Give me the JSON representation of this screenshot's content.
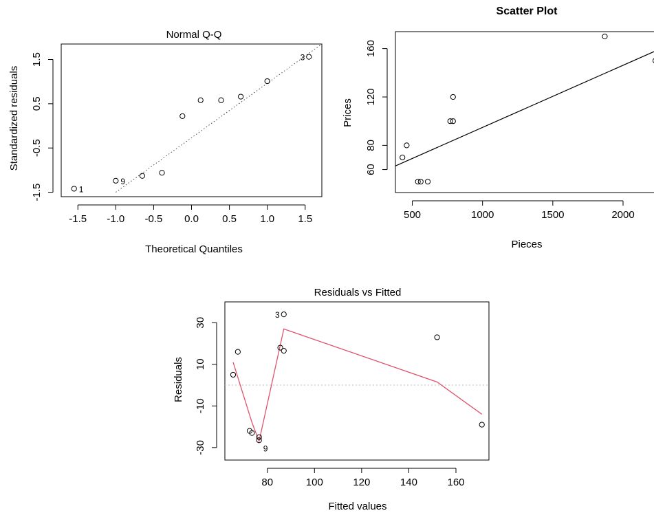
{
  "chart_data": [
    {
      "id": "qq",
      "type": "scatter",
      "title": "Normal Q-Q",
      "title_bold": false,
      "xlabel": "Theoretical Quantiles",
      "ylabel": "Standardized residuals",
      "xlim": [
        -1.72,
        1.72
      ],
      "ylim": [
        -1.6,
        1.85
      ],
      "xticks": [
        "-1.5",
        "-1.0",
        "-0.5",
        "0.0",
        "0.5",
        "1.0",
        "1.5"
      ],
      "xtick_values": [
        -1.5,
        -1.0,
        -0.5,
        0.0,
        0.5,
        1.0,
        1.5
      ],
      "yticks": [
        "-1.5",
        "-0.5",
        "0.5",
        "1.5"
      ],
      "ytick_values": [
        -1.5,
        -0.5,
        0.5,
        1.5
      ],
      "points": [
        {
          "x": -1.55,
          "y": -1.42,
          "label": "1"
        },
        {
          "x": -1.0,
          "y": -1.24,
          "label": "9"
        },
        {
          "x": -0.65,
          "y": -1.13,
          "label": ""
        },
        {
          "x": -0.39,
          "y": -1.06,
          "label": ""
        },
        {
          "x": -0.12,
          "y": 0.22,
          "label": ""
        },
        {
          "x": 0.12,
          "y": 0.58,
          "label": ""
        },
        {
          "x": 0.39,
          "y": 0.58,
          "label": ""
        },
        {
          "x": 0.65,
          "y": 0.66,
          "label": ""
        },
        {
          "x": 1.0,
          "y": 1.01,
          "label": ""
        },
        {
          "x": 1.55,
          "y": 1.56,
          "label": "3"
        }
      ],
      "reference_line": {
        "x1": -1.0,
        "y1": -1.5,
        "x2": 1.72,
        "y2": 1.85,
        "style": "dotted"
      }
    },
    {
      "id": "scatter",
      "type": "scatter",
      "title": "Scatter Plot",
      "title_bold": true,
      "xlabel": "Pieces",
      "ylabel": "Prices",
      "xlim": [
        380,
        2230
      ],
      "ylim": [
        41,
        174
      ],
      "xticks": [
        "500",
        "1000",
        "1500",
        "2000"
      ],
      "xtick_values": [
        500,
        1000,
        1500,
        2000
      ],
      "yticks": [
        "60",
        "80",
        "120",
        "160"
      ],
      "ytick_values": [
        60,
        80,
        120,
        160
      ],
      "points": [
        {
          "x": 430,
          "y": 70
        },
        {
          "x": 460,
          "y": 80
        },
        {
          "x": 540,
          "y": 50
        },
        {
          "x": 560,
          "y": 50
        },
        {
          "x": 610,
          "y": 50
        },
        {
          "x": 770,
          "y": 100
        },
        {
          "x": 790,
          "y": 100
        },
        {
          "x": 790,
          "y": 120
        },
        {
          "x": 1870,
          "y": 170
        },
        {
          "x": 2230,
          "y": 150
        }
      ],
      "regression_line": {
        "x1": 380,
        "y1": 63,
        "x2": 2230,
        "y2": 158
      }
    },
    {
      "id": "resid",
      "type": "scatter",
      "title": "Residuals vs Fitted",
      "title_bold": false,
      "xlabel": "Fitted values",
      "ylabel": "Residuals",
      "xlim": [
        62,
        174
      ],
      "ylim": [
        -36,
        40
      ],
      "xticks": [
        "80",
        "100",
        "120",
        "140",
        "160"
      ],
      "xtick_values": [
        80,
        100,
        120,
        140,
        160
      ],
      "yticks": [
        "-30",
        "-10",
        "10",
        "30"
      ],
      "ytick_values": [
        -30,
        -10,
        10,
        30
      ],
      "points": [
        {
          "x": 65.5,
          "y": 5,
          "label": ""
        },
        {
          "x": 67.5,
          "y": 16,
          "label": ""
        },
        {
          "x": 72.5,
          "y": -22,
          "label": ""
        },
        {
          "x": 73.5,
          "y": -23,
          "label": ""
        },
        {
          "x": 76.5,
          "y": -25,
          "label": ""
        },
        {
          "x": 76.5,
          "y": -26.5,
          "label": "9"
        },
        {
          "x": 85.5,
          "y": 18,
          "label": ""
        },
        {
          "x": 87,
          "y": 16.5,
          "label": ""
        },
        {
          "x": 87,
          "y": 34,
          "label": "3"
        },
        {
          "x": 152,
          "y": 23,
          "label": ""
        },
        {
          "x": 171,
          "y": -19,
          "label": ""
        }
      ],
      "smooth_line": [
        [
          65.5,
          11
        ],
        [
          73.5,
          -18
        ],
        [
          76.5,
          -27
        ],
        [
          87,
          27
        ],
        [
          152,
          1.5
        ],
        [
          171,
          -14
        ]
      ],
      "zero_line": 0,
      "colors": {
        "smooth": "#df536b",
        "zero": "#bebebe"
      }
    }
  ]
}
